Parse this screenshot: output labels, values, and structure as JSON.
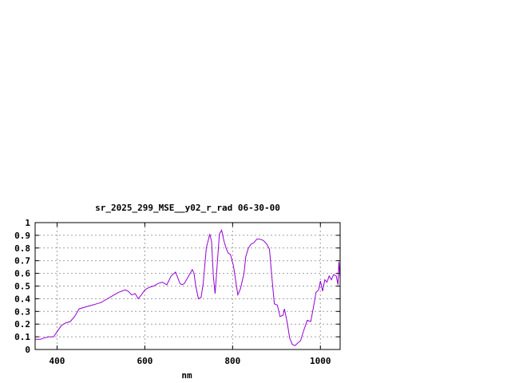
{
  "chart_data": {
    "type": "line",
    "title": "sr_2025_299_MSE__y02_r_rad 06-30-00",
    "xlabel": "nm",
    "ylabel": "",
    "xlim": [
      350,
      1045
    ],
    "ylim": [
      0,
      1
    ],
    "grid": true,
    "x_ticks": [
      400,
      600,
      800,
      1000
    ],
    "y_ticks": [
      0,
      0.1,
      0.2,
      0.3,
      0.4,
      0.5,
      0.6,
      0.7,
      0.8,
      0.9,
      1
    ],
    "y_tick_labels": [
      "0",
      "0.1",
      "0.2",
      "0.3",
      "0.4",
      "0.5",
      "0.6",
      "0.7",
      "0.8",
      "0.9",
      "1"
    ],
    "colors": {
      "line": "#9400d3",
      "grid": "#a0a0a0",
      "axis": "#000000"
    },
    "series": [
      {
        "x": [
          350,
          362,
          370,
          380,
          392,
          400,
          410,
          420,
          430,
          440,
          450,
          460,
          470,
          480,
          490,
          500,
          510,
          520,
          530,
          540,
          555,
          562,
          570,
          578,
          585,
          592,
          600,
          610,
          620,
          630,
          640,
          650,
          660,
          670,
          680,
          685,
          690,
          700,
          708,
          712,
          716,
          722,
          728,
          733,
          740,
          748,
          752,
          756,
          760,
          764,
          770,
          775,
          780,
          785,
          790,
          795,
          802,
          808,
          812,
          818,
          826,
          830,
          836,
          842,
          848,
          855,
          862,
          870,
          878,
          884,
          890,
          895,
          902,
          908,
          915,
          918,
          924,
          930,
          936,
          942,
          948,
          955,
          962,
          970,
          978,
          984,
          990,
          996,
          1000,
          1005,
          1010,
          1015,
          1020,
          1025,
          1030,
          1036,
          1040,
          1042,
          1045
        ],
        "y": [
          0.08,
          0.08,
          0.09,
          0.1,
          0.1,
          0.14,
          0.19,
          0.21,
          0.22,
          0.26,
          0.32,
          0.33,
          0.34,
          0.35,
          0.36,
          0.37,
          0.39,
          0.41,
          0.43,
          0.45,
          0.47,
          0.46,
          0.43,
          0.44,
          0.4,
          0.43,
          0.47,
          0.49,
          0.5,
          0.52,
          0.53,
          0.51,
          0.58,
          0.61,
          0.52,
          0.51,
          0.52,
          0.58,
          0.63,
          0.6,
          0.5,
          0.4,
          0.41,
          0.52,
          0.8,
          0.91,
          0.85,
          0.58,
          0.44,
          0.63,
          0.91,
          0.94,
          0.86,
          0.8,
          0.76,
          0.75,
          0.66,
          0.52,
          0.43,
          0.48,
          0.6,
          0.73,
          0.8,
          0.83,
          0.84,
          0.87,
          0.87,
          0.86,
          0.83,
          0.79,
          0.55,
          0.36,
          0.35,
          0.26,
          0.27,
          0.32,
          0.22,
          0.09,
          0.04,
          0.03,
          0.05,
          0.07,
          0.15,
          0.23,
          0.22,
          0.33,
          0.45,
          0.47,
          0.54,
          0.46,
          0.55,
          0.53,
          0.58,
          0.55,
          0.59,
          0.58,
          0.51,
          0.69,
          0.56
        ]
      }
    ]
  }
}
